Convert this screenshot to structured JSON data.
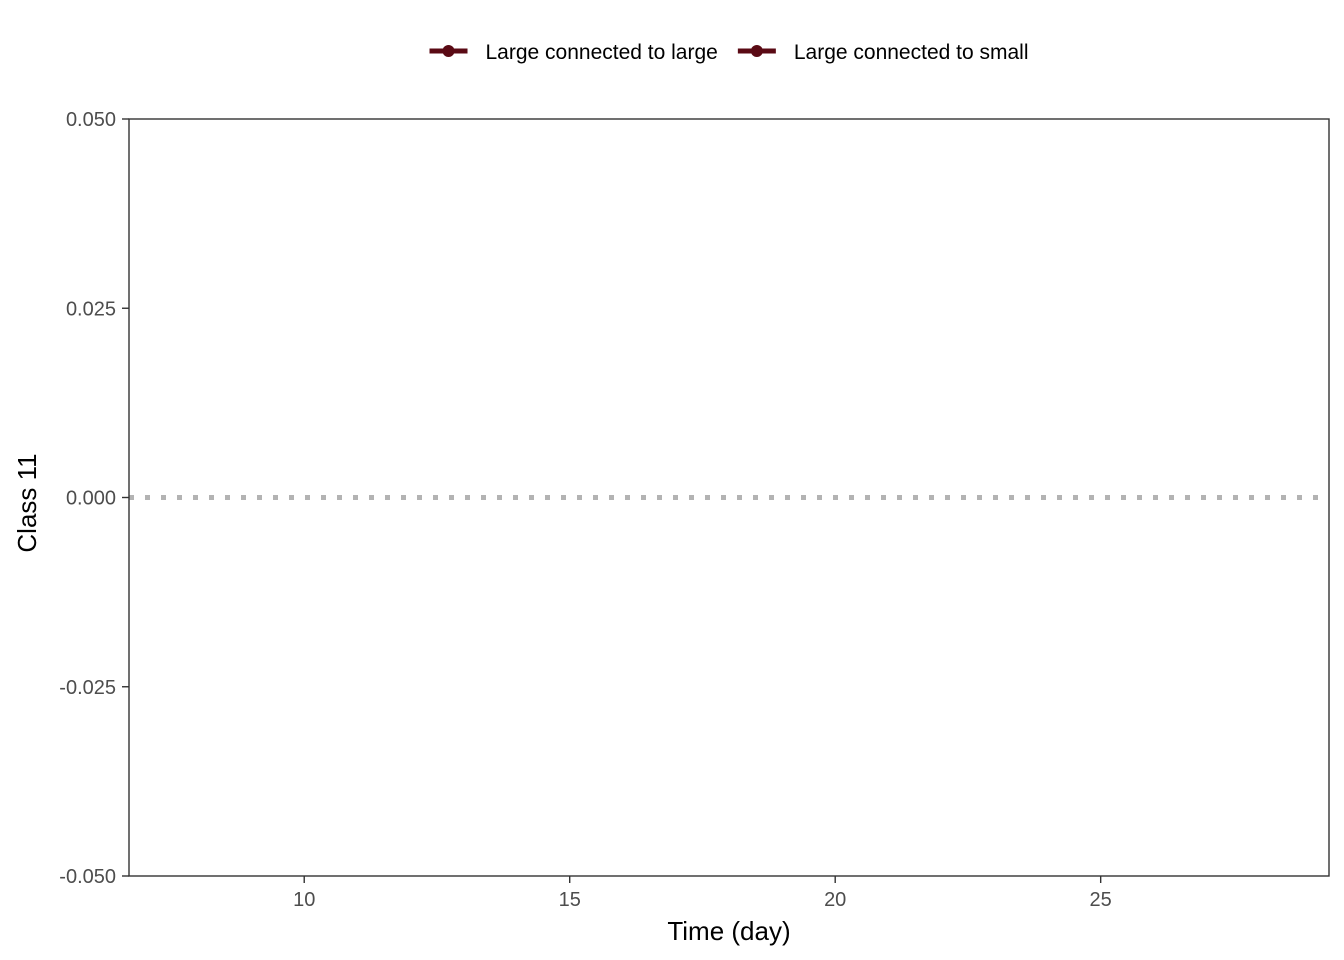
{
  "chart_data": {
    "type": "line",
    "title": "",
    "xlabel": "Time (day)",
    "ylabel": "Class 11",
    "xlim": [
      6.7,
      29.3
    ],
    "ylim": [
      -0.05,
      0.05
    ],
    "x_ticks": [
      10,
      15,
      20,
      25
    ],
    "x_tick_labels": [
      "10",
      "15",
      "20",
      "25"
    ],
    "y_ticks": [
      -0.05,
      -0.025,
      0,
      0.025,
      0.05
    ],
    "y_tick_labels": [
      "-0.050",
      "-0.025",
      "0.000",
      "0.025",
      "0.050"
    ],
    "reference_line": {
      "y": 0,
      "style": "dotted",
      "color": "#b3b3b3"
    },
    "grid": false,
    "legend_position": "top",
    "series": [
      {
        "name": "Large connected to large",
        "color": "#5a0a14",
        "x": [],
        "y": []
      },
      {
        "name": "Large connected to small",
        "color": "#5a0a14",
        "x": [],
        "y": []
      }
    ]
  }
}
